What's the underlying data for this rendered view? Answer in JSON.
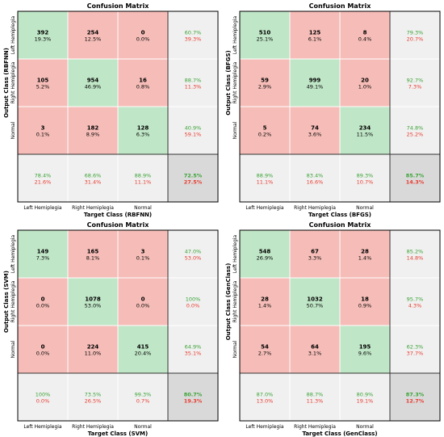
{
  "colors": {
    "green_cell": "#bfe6c6",
    "red_cell": "#f6bdb8",
    "summary_cell": "#f0f0f0",
    "total_cell": "#d9d9d9",
    "green_text": "#3aa335",
    "red_text": "#e83a2e",
    "grid": "#ffffff",
    "border": "#000000"
  },
  "chart_data": [
    {
      "type": "heatmap",
      "title": "Confusion Matrix",
      "xlabel": "Target Class (RBFNN)",
      "ylabel": "Output Class (RBFNN)",
      "classes": [
        "Left Hemiplegia",
        "Right Hemiplegia",
        "Normal"
      ],
      "counts": [
        [
          392,
          254,
          0
        ],
        [
          105,
          954,
          16
        ],
        [
          3,
          182,
          128
        ]
      ],
      "cell_pct": [
        [
          "19.3%",
          "12.5%",
          "0.0%"
        ],
        [
          "5.2%",
          "46.9%",
          "0.8%"
        ],
        [
          "0.1%",
          "8.9%",
          "6.3%"
        ]
      ],
      "row_summary": [
        [
          "60.7%",
          "39.3%"
        ],
        [
          "88.7%",
          "11.3%"
        ],
        [
          "40.9%",
          "59.1%"
        ]
      ],
      "col_summary": [
        [
          "78.4%",
          "21.6%"
        ],
        [
          "68.6%",
          "31.4%"
        ],
        [
          "88.9%",
          "11.1%"
        ]
      ],
      "total": [
        "72.5%",
        "27.5%"
      ]
    },
    {
      "type": "heatmap",
      "title": "Confusion Matrix",
      "xlabel": "Target Class (BFGS)",
      "ylabel": "Output Class (BFGS)",
      "classes": [
        "Left Hemiplegia",
        "Right Hemiplegia",
        "Normal"
      ],
      "counts": [
        [
          510,
          125,
          8
        ],
        [
          59,
          999,
          20
        ],
        [
          5,
          74,
          234
        ]
      ],
      "cell_pct": [
        [
          "25.1%",
          "6.1%",
          "0.4%"
        ],
        [
          "2.9%",
          "49.1%",
          "1.0%"
        ],
        [
          "0.2%",
          "3.6%",
          "11.5%"
        ]
      ],
      "row_summary": [
        [
          "79.3%",
          "20.7%"
        ],
        [
          "92.7%",
          "7.3%"
        ],
        [
          "74.8%",
          "25.2%"
        ]
      ],
      "col_summary": [
        [
          "88.9%",
          "11.1%"
        ],
        [
          "83.4%",
          "16.6%"
        ],
        [
          "89.3%",
          "10.7%"
        ]
      ],
      "total": [
        "85.7%",
        "14.3%"
      ]
    },
    {
      "type": "heatmap",
      "title": "Confusion Matrix",
      "xlabel": "Target Class (SVM)",
      "ylabel": "Output Class (SVM)",
      "classes": [
        "Left Hemiplegia",
        "Right Hemiplegia",
        "Normal"
      ],
      "counts": [
        [
          149,
          165,
          3
        ],
        [
          0,
          1078,
          0
        ],
        [
          0,
          224,
          415
        ]
      ],
      "cell_pct": [
        [
          "7.3%",
          "8.1%",
          "0.1%"
        ],
        [
          "0.0%",
          "53.0%",
          "0.0%"
        ],
        [
          "0.0%",
          "11.0%",
          "20.4%"
        ]
      ],
      "row_summary": [
        [
          "47.0%",
          "53.0%"
        ],
        [
          "100%",
          "0.0%"
        ],
        [
          "64.9%",
          "35.1%"
        ]
      ],
      "col_summary": [
        [
          "100%",
          "0.0%"
        ],
        [
          "73.5%",
          "26.5%"
        ],
        [
          "99.3%",
          "0.7%"
        ]
      ],
      "total": [
        "80.7%",
        "19.3%"
      ]
    },
    {
      "type": "heatmap",
      "title": "Confusion Matrix",
      "xlabel": "Target Class (GenClass)",
      "ylabel": "Output Class (GenClass)",
      "classes": [
        "Left Hemiplegia",
        "Right Hemiplegia",
        "Normal"
      ],
      "counts": [
        [
          548,
          67,
          28
        ],
        [
          28,
          1032,
          18
        ],
        [
          54,
          64,
          195
        ]
      ],
      "cell_pct": [
        [
          "26.9%",
          "3.3%",
          "1.4%"
        ],
        [
          "1.4%",
          "50.7%",
          "0.9%"
        ],
        [
          "2.7%",
          "3.1%",
          "9.6%"
        ]
      ],
      "row_summary": [
        [
          "85.2%",
          "14.8%"
        ],
        [
          "95.7%",
          "4.3%"
        ],
        [
          "62.3%",
          "37.7%"
        ]
      ],
      "col_summary": [
        [
          "87.0%",
          "13.0%"
        ],
        [
          "88.7%",
          "11.3%"
        ],
        [
          "80.9%",
          "19.1%"
        ]
      ],
      "total": [
        "87.3%",
        "12.7%"
      ]
    }
  ]
}
